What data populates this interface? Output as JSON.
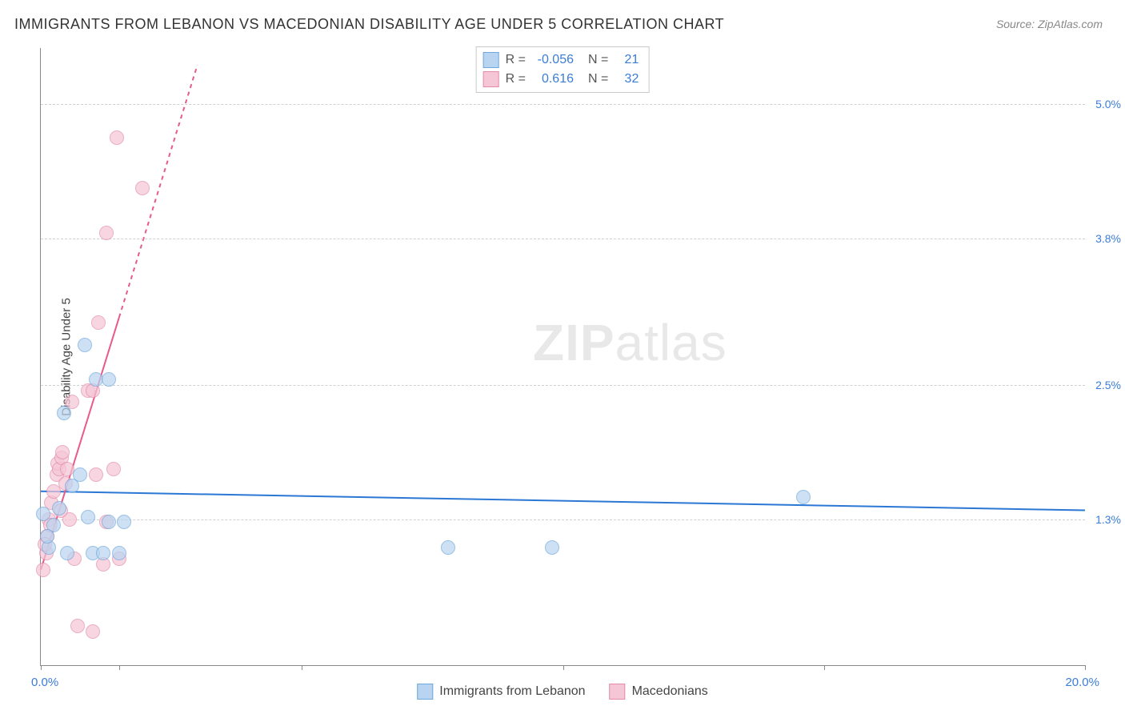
{
  "title": "IMMIGRANTS FROM LEBANON VS MACEDONIAN DISABILITY AGE UNDER 5 CORRELATION CHART",
  "source": "Source: ZipAtlas.com",
  "watermark_bold": "ZIP",
  "watermark_rest": "atlas",
  "y_axis_label": "Disability Age Under 5",
  "x_min_label": "0.0%",
  "x_max_label": "20.0%",
  "chart": {
    "type": "scatter",
    "xlim": [
      0,
      20
    ],
    "ylim": [
      0,
      5.5
    ],
    "x_ticks": [
      0,
      1.5,
      5,
      10,
      15,
      20
    ],
    "y_gridlines": [
      {
        "value": 1.3,
        "label": "1.3%"
      },
      {
        "value": 2.5,
        "label": "2.5%"
      },
      {
        "value": 3.8,
        "label": "3.8%"
      },
      {
        "value": 5.0,
        "label": "5.0%"
      }
    ],
    "background_color": "#ffffff",
    "grid_color": "#d0d0d0",
    "axis_color": "#888888",
    "text_color": "#444444",
    "value_color": "#3b7dd8",
    "marker_radius": 9,
    "marker_stroke_width": 1.5,
    "series": {
      "lebanon": {
        "label": "Immigrants from Lebanon",
        "fill": "#b8d4f0",
        "stroke": "#6fa8dc",
        "fill_opacity": 0.7,
        "R": "-0.056",
        "N": "21",
        "trend": {
          "color": "#2b78d4",
          "width": 2,
          "x1": 0,
          "y1": 1.55,
          "x2": 20,
          "y2": 1.38,
          "dashed_beyond": 20
        },
        "points": [
          {
            "x": 0.15,
            "y": 1.05
          },
          {
            "x": 0.25,
            "y": 1.25
          },
          {
            "x": 0.05,
            "y": 1.35
          },
          {
            "x": 0.35,
            "y": 1.4
          },
          {
            "x": 0.5,
            "y": 1.0
          },
          {
            "x": 0.6,
            "y": 1.6
          },
          {
            "x": 0.75,
            "y": 1.7
          },
          {
            "x": 0.9,
            "y": 1.32
          },
          {
            "x": 1.0,
            "y": 1.0
          },
          {
            "x": 1.2,
            "y": 1.0
          },
          {
            "x": 1.3,
            "y": 1.28
          },
          {
            "x": 1.5,
            "y": 1.0
          },
          {
            "x": 1.6,
            "y": 1.28
          },
          {
            "x": 0.45,
            "y": 2.25
          },
          {
            "x": 0.85,
            "y": 2.85
          },
          {
            "x": 1.05,
            "y": 2.55
          },
          {
            "x": 1.3,
            "y": 2.55
          },
          {
            "x": 7.8,
            "y": 1.05
          },
          {
            "x": 9.8,
            "y": 1.05
          },
          {
            "x": 14.6,
            "y": 1.5
          },
          {
            "x": 0.12,
            "y": 1.15
          }
        ]
      },
      "macedonian": {
        "label": "Macedonians",
        "fill": "#f5c6d6",
        "stroke": "#e48bab",
        "fill_opacity": 0.7,
        "R": "0.616",
        "N": "32",
        "trend": {
          "color": "#e85a8a",
          "width": 2,
          "x1": 0,
          "y1": 0.85,
          "x2": 1.5,
          "y2": 3.1,
          "dashed_to_x": 3.0,
          "dashed_to_y": 5.35
        },
        "points": [
          {
            "x": 0.05,
            "y": 0.85
          },
          {
            "x": 0.1,
            "y": 1.0
          },
          {
            "x": 0.12,
            "y": 1.15
          },
          {
            "x": 0.15,
            "y": 1.3
          },
          {
            "x": 0.18,
            "y": 1.25
          },
          {
            "x": 0.2,
            "y": 1.45
          },
          {
            "x": 0.25,
            "y": 1.55
          },
          {
            "x": 0.3,
            "y": 1.7
          },
          {
            "x": 0.32,
            "y": 1.8
          },
          {
            "x": 0.35,
            "y": 1.75
          },
          {
            "x": 0.4,
            "y": 1.85
          },
          {
            "x": 0.42,
            "y": 1.9
          },
          {
            "x": 0.5,
            "y": 1.75
          },
          {
            "x": 0.55,
            "y": 1.3
          },
          {
            "x": 0.6,
            "y": 2.35
          },
          {
            "x": 0.65,
            "y": 0.95
          },
          {
            "x": 0.7,
            "y": 0.35
          },
          {
            "x": 0.9,
            "y": 2.45
          },
          {
            "x": 1.0,
            "y": 2.45
          },
          {
            "x": 1.05,
            "y": 1.7
          },
          {
            "x": 1.1,
            "y": 3.05
          },
          {
            "x": 1.2,
            "y": 0.9
          },
          {
            "x": 1.25,
            "y": 1.28
          },
          {
            "x": 1.4,
            "y": 1.75
          },
          {
            "x": 1.5,
            "y": 0.95
          },
          {
            "x": 1.25,
            "y": 3.85
          },
          {
            "x": 1.0,
            "y": 0.3
          },
          {
            "x": 1.95,
            "y": 4.25
          },
          {
            "x": 1.45,
            "y": 4.7
          },
          {
            "x": 0.48,
            "y": 1.62
          },
          {
            "x": 0.08,
            "y": 1.08
          },
          {
            "x": 0.38,
            "y": 1.38
          }
        ]
      }
    }
  },
  "stats_legend": {
    "R_label": "R =",
    "N_label": "N ="
  }
}
